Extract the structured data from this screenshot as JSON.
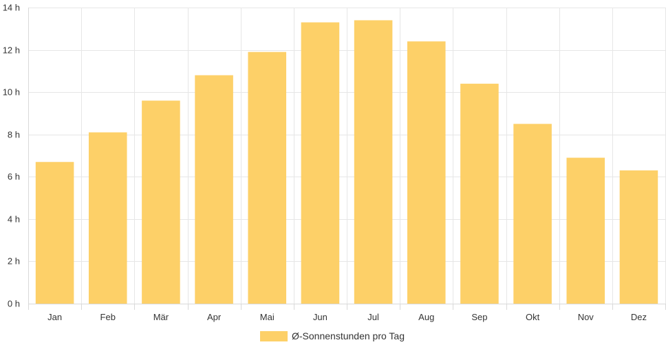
{
  "chart_data": {
    "type": "bar",
    "categories": [
      "Jan",
      "Feb",
      "Mär",
      "Apr",
      "Mai",
      "Jun",
      "Jul",
      "Aug",
      "Sep",
      "Okt",
      "Nov",
      "Dez"
    ],
    "series": [
      {
        "name": "Ø-Sonnenstunden pro Tag",
        "values": [
          6.7,
          8.1,
          9.6,
          10.8,
          11.9,
          13.3,
          13.4,
          12.4,
          10.4,
          8.5,
          6.9,
          6.3
        ],
        "color": "#fdd068"
      }
    ],
    "ylim": [
      0,
      14
    ],
    "yticks": [
      "0 h",
      "2 h",
      "4 h",
      "6 h",
      "8 h",
      "10 h",
      "12 h",
      "14 h"
    ],
    "grid": true,
    "legend_position": "bottom"
  }
}
